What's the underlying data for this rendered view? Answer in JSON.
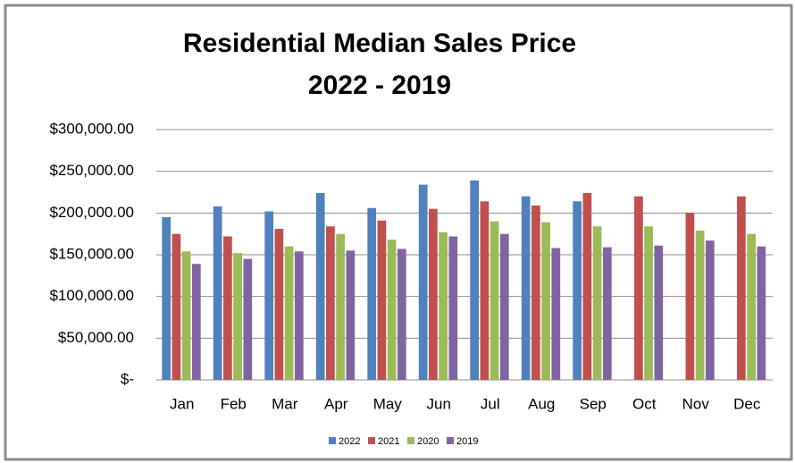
{
  "chart_data": {
    "type": "bar",
    "title": "Residential Median Sales Price",
    "subtitle": "2022 - 2019",
    "categories": [
      "Jan",
      "Feb",
      "Mar",
      "Apr",
      "May",
      "Jun",
      "Jul",
      "Aug",
      "Sep",
      "Oct",
      "Nov",
      "Dec"
    ],
    "series": [
      {
        "name": "2022",
        "color": "#4f81bd",
        "values": [
          195000,
          208000,
          202000,
          224000,
          206000,
          234000,
          239000,
          220000,
          214000,
          null,
          null,
          null
        ]
      },
      {
        "name": "2021",
        "color": "#c0504d",
        "values": [
          175000,
          172000,
          181000,
          184000,
          191000,
          205000,
          214000,
          209000,
          224000,
          220000,
          200000,
          220000
        ]
      },
      {
        "name": "2020",
        "color": "#9bbb59",
        "values": [
          154000,
          152000,
          160000,
          175000,
          168000,
          177000,
          190000,
          189000,
          184000,
          184000,
          179000,
          175000
        ]
      },
      {
        "name": "2019",
        "color": "#8064a2",
        "values": [
          139000,
          145000,
          154000,
          155000,
          157000,
          172000,
          175000,
          158000,
          159000,
          161000,
          167000,
          160000
        ]
      }
    ],
    "ylim": [
      0,
      300000
    ],
    "yticks": [
      {
        "value": 0,
        "label": "$-"
      },
      {
        "value": 50000,
        "label": "$50,000.00"
      },
      {
        "value": 100000,
        "label": "$100,000.00"
      },
      {
        "value": 150000,
        "label": "$150,000.00"
      },
      {
        "value": 200000,
        "label": "$200,000.00"
      },
      {
        "value": 250000,
        "label": "$250,000.00"
      },
      {
        "value": 300000,
        "label": "$300,000.00"
      }
    ],
    "grid": true,
    "legend": "bottom"
  }
}
